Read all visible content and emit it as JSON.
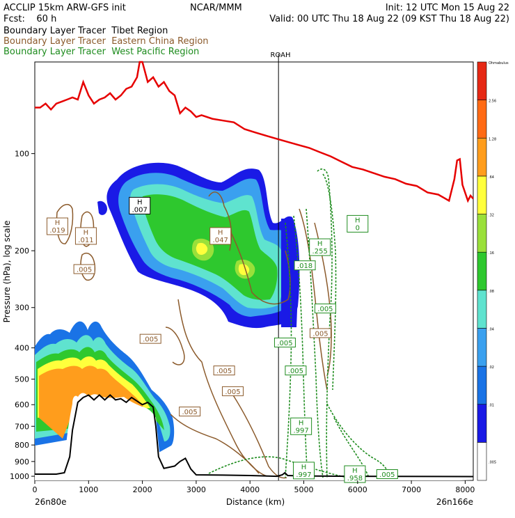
{
  "header": {
    "left_line1": "ACCLIP 15km ARW-GFS init",
    "left_line2": "Fcst:    60 h",
    "center_line1": "NCAR/MMM",
    "right_line1": "Init: 12 UTC Mon 15 Aug 22",
    "right_line2": "Valid: 00 UTC Thu 18 Aug 22 (09 KST Thu 18 Aug 22)"
  },
  "legend": [
    {
      "label": "Boundary Layer Tracer  Tibet Region",
      "color": "#000000"
    },
    {
      "label": "Boundary Layer Tracer  Eastern China Region",
      "color": "#8b5a2b"
    },
    {
      "label": "Boundary Layer Tracer  West Pacific Region",
      "color": "#1e8c1e"
    }
  ],
  "chart_data": {
    "type": "cross-section",
    "xlabel": "Distance (km)",
    "ylabel": "Pressure (hPa), log scale",
    "x_ticks": [
      0,
      1000,
      2000,
      3000,
      4000,
      5000,
      6000,
      7000,
      8000
    ],
    "xlim": [
      0,
      8150
    ],
    "y_ticks": [
      100,
      200,
      300,
      400,
      500,
      600,
      700,
      800,
      900,
      1000
    ],
    "ylim": [
      1030,
      52
    ],
    "y_scale": "log",
    "left_endpoint": "26n80e",
    "right_endpoint": "26n166e",
    "vertical_marker": {
      "label": "ROAH",
      "x": 4530
    },
    "colorbar": {
      "levels": [
        ".005",
        ".01",
        ".02",
        ".04",
        ".08",
        ".16",
        ".32",
        ".64",
        "1.28",
        "2.56",
        "Ohmabulus"
      ],
      "colors": [
        "#ffffff",
        "#1a1ae6",
        "#1a73e6",
        "#3aa0ef",
        "#5fe3cf",
        "#2ec82e",
        "#9ae03a",
        "#ffff3c",
        "#ff9d1c",
        "#ff6a14",
        "#e62814"
      ]
    },
    "contour_labels": [
      {
        "text": "H .007",
        "x": 1950,
        "p": 145,
        "series": "Tibet"
      },
      {
        "text": "H .019",
        "x": 420,
        "p": 168,
        "series": "Eastern China"
      },
      {
        "text": "H .011",
        "x": 950,
        "p": 180,
        "series": "Eastern China"
      },
      {
        "text": ".005",
        "x": 920,
        "p": 228,
        "series": "Eastern China"
      },
      {
        "text": "H .047",
        "x": 3450,
        "p": 180,
        "series": "Eastern China"
      },
      {
        "text": ".005",
        "x": 2150,
        "p": 375,
        "series": "Eastern China"
      },
      {
        "text": ".005",
        "x": 3520,
        "p": 470,
        "series": "Eastern China"
      },
      {
        "text": ".005",
        "x": 3680,
        "p": 545,
        "series": "Eastern China"
      },
      {
        "text": ".005",
        "x": 2880,
        "p": 630,
        "series": "Eastern China"
      },
      {
        "text": ".005",
        "x": 5310,
        "p": 360,
        "series": "Eastern China"
      },
      {
        "text": "H 0",
        "x": 6000,
        "p": 165,
        "series": "West Pacific"
      },
      {
        "text": "H .255",
        "x": 5300,
        "p": 195,
        "series": "West Pacific"
      },
      {
        "text": ".018",
        "x": 5020,
        "p": 222,
        "series": "West Pacific"
      },
      {
        "text": ".005",
        "x": 5400,
        "p": 302,
        "series": "West Pacific"
      },
      {
        "text": ".005",
        "x": 4650,
        "p": 385,
        "series": "West Pacific"
      },
      {
        "text": ".005",
        "x": 4850,
        "p": 470,
        "series": "West Pacific"
      },
      {
        "text": "H .997",
        "x": 4950,
        "p": 700,
        "series": "West Pacific"
      },
      {
        "text": "H .997",
        "x": 5000,
        "p": 960,
        "series": "West Pacific"
      },
      {
        "text": "H .958",
        "x": 5950,
        "p": 985,
        "series": "West Pacific"
      },
      {
        "text": ".005",
        "x": 6550,
        "p": 985,
        "series": "West Pacific"
      }
    ],
    "series": [
      {
        "name": "Tropopause",
        "color": "#e60000"
      },
      {
        "name": "Terrain",
        "color": "#000000"
      }
    ]
  }
}
